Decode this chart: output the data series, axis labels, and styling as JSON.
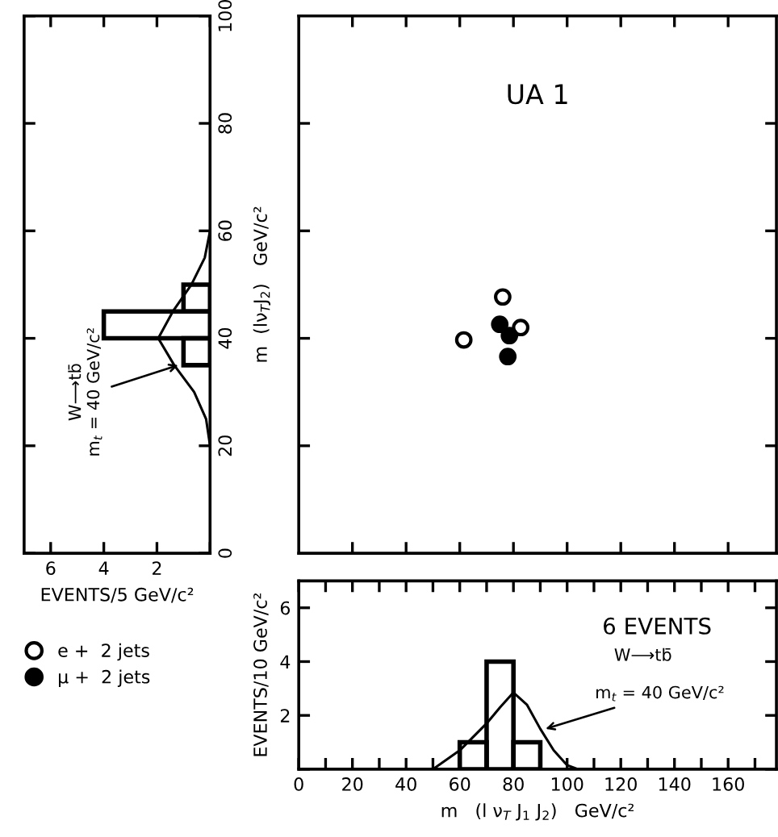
{
  "chart_data": [
    {
      "type": "histogram",
      "orientation": "horizontal",
      "xlabel": "EVENTS/5 GeV/c²",
      "ylabel": "m  (lν$_{T}$J$_{2}$)   GeV/c²",
      "bins": [
        35,
        40,
        45,
        50
      ],
      "values": [
        1,
        4,
        1
      ],
      "color": "#000000",
      "xlim": [
        7,
        0
      ],
      "xticks": [
        6,
        4,
        2,
        {
          "value": 0,
          "label": null
        }
      ],
      "ylim": [
        0,
        100
      ],
      "yticks": [
        0,
        20,
        40,
        60,
        80,
        100
      ],
      "series": [
        {
          "type": "line",
          "color": "#000000",
          "x": [
            20,
            25,
            30,
            35,
            40,
            45,
            50,
            55,
            60
          ],
          "values": [
            0,
            0.15,
            0.6,
            1.35,
            1.95,
            1.4,
            0.7,
            0.2,
            0
          ]
        }
      ],
      "annotations": [
        "W⟶tb̄",
        {
          "text": "m$_{t}$ = 40 GeV/c²",
          "x": 1.2,
          "y": 35
        }
      ]
    },
    {
      "type": "scatter",
      "title": "UA 1",
      "xlim": [
        0,
        178
      ],
      "ylim": [
        0,
        100
      ],
      "xticks": [
        20,
        40,
        60,
        80,
        100,
        120,
        140,
        160
      ],
      "yticks": [
        20,
        40,
        60,
        80
      ],
      "tick_labels": false,
      "marker": "circle",
      "legend": "bottom left",
      "series": [
        {
          "name": "e +  2 jets",
          "color": "#ffffff",
          "x": [
            61.5,
            76,
            82.7
          ],
          "values": [
            39.7,
            47.7,
            42
          ]
        },
        {
          "name": "μ +  2 jets",
          "color": "#000000",
          "x": [
            74.9,
            78.5,
            77.9
          ],
          "values": [
            42.6,
            40.5,
            36.6
          ]
        }
      ]
    },
    {
      "type": "histogram",
      "title": "6 EVENTS",
      "xlabel": "m   (l ν$_{T}$ J$_{1}$ J$_{2}$)   GeV/c²",
      "ylabel": "EVENTS/10 GeV/c²",
      "bins": [
        60,
        70,
        80,
        90
      ],
      "values": [
        1,
        4,
        1
      ],
      "color": "#000000",
      "xlim": [
        0,
        178
      ],
      "xticks": [
        0,
        {
          "value": 10,
          "label": null
        },
        20,
        {
          "value": 30,
          "label": null
        },
        40,
        {
          "value": 50,
          "label": null
        },
        60,
        {
          "value": 70,
          "label": null
        },
        80,
        {
          "value": 90,
          "label": null
        },
        100,
        {
          "value": 110,
          "label": null
        },
        120,
        {
          "value": 130,
          "label": null
        },
        140,
        {
          "value": 150,
          "label": null
        },
        160,
        {
          "value": 170,
          "label": null
        }
      ],
      "ylim": [
        0,
        7
      ],
      "yticks": [
        {
          "value": 0,
          "label": null
        },
        2,
        4,
        6
      ],
      "series": [
        {
          "type": "line",
          "color": "#000000",
          "x": [
            50,
            60,
            70,
            75,
            80,
            85,
            90,
            95,
            100,
            104
          ],
          "values": [
            0,
            0.7,
            1.7,
            2.3,
            2.85,
            2.4,
            1.5,
            0.7,
            0.15,
            0
          ]
        }
      ],
      "annotations": [
        "W⟶tb̄",
        {
          "text": "m$_{t}$ = 40 GeV/c²",
          "x": 92,
          "y": 1.5
        }
      ]
    }
  ]
}
